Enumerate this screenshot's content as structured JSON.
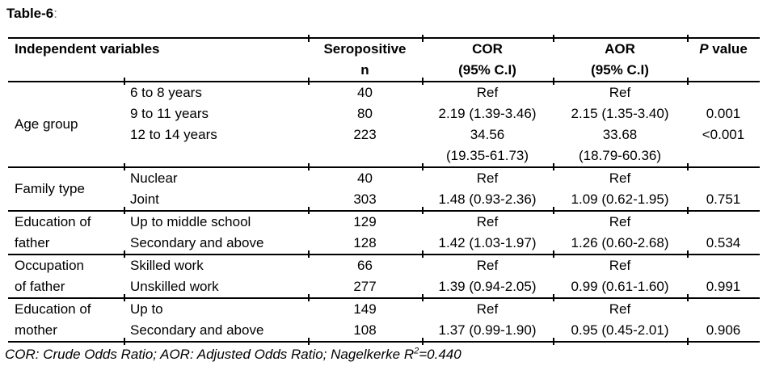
{
  "title": {
    "label": "Table-6",
    "colon": ":"
  },
  "header": {
    "col_variables": "Independent variables",
    "col_n_line1": "Seropositive",
    "col_n_line2": "n",
    "col_cor_line1": "COR",
    "col_cor_line2": "(95% C.I)",
    "col_aor_line1": "AOR",
    "col_aor_line2": "(95% C.I)",
    "col_p_italic": "P",
    "col_p_rest": "value"
  },
  "sections": [
    {
      "group_lines": [
        "Age group"
      ],
      "rows": [
        {
          "category": "6 to 8 years",
          "n": "40",
          "cor": "Ref",
          "aor": "Ref",
          "p": ""
        },
        {
          "category": "9 to 11 years",
          "n": "80",
          "cor": "2.19 (1.39-3.46)",
          "aor": "2.15 (1.35-3.40)",
          "p": "0.001"
        },
        {
          "category": "12 to 14 years",
          "n": "223",
          "cor": "34.56",
          "aor": "33.68",
          "p": "<0.001"
        },
        {
          "category": "",
          "n": "",
          "cor": "(19.35-61.73)",
          "aor": "(18.79-60.36)",
          "p": ""
        }
      ]
    },
    {
      "group_lines": [
        "Family type"
      ],
      "rows": [
        {
          "category": "Nuclear",
          "n": "40",
          "cor": "Ref",
          "aor": "Ref",
          "p": ""
        },
        {
          "category": "Joint",
          "n": "303",
          "cor": "1.48 (0.93-2.36)",
          "aor": "1.09 (0.62-1.95)",
          "p": "0.751"
        }
      ]
    },
    {
      "group_lines": [
        "Education of",
        "father"
      ],
      "rows": [
        {
          "category": "Up to middle school",
          "n": "129",
          "cor": "Ref",
          "aor": "Ref",
          "p": ""
        },
        {
          "category": "Secondary and above",
          "n": "128",
          "cor": "1.42 (1.03-1.97)",
          "aor": "1.26 (0.60-2.68)",
          "p": "0.534"
        }
      ]
    },
    {
      "group_lines": [
        "Occupation",
        "of father"
      ],
      "rows": [
        {
          "category": "Skilled work",
          "n": "66",
          "cor": "Ref",
          "aor": "Ref",
          "p": ""
        },
        {
          "category": "Unskilled work",
          "n": "277",
          "cor": "1.39 (0.94-2.05)",
          "aor": "0.99 (0.61-1.60)",
          "p": "0.991"
        }
      ]
    },
    {
      "group_lines": [
        "Education of",
        "mother"
      ],
      "rows": [
        {
          "category": "Up to",
          "n": "149",
          "cor": "Ref",
          "aor": "Ref",
          "p": ""
        },
        {
          "category": "Secondary and above",
          "n": "108",
          "cor": "1.37 (0.99-1.90)",
          "aor": "0.95 (0.45-2.01)",
          "p": "0.906"
        }
      ]
    }
  ],
  "footnote": {
    "before_sup": "COR: Crude Odds Ratio; AOR: Adjusted Odds Ratio; Nagelkerke R",
    "sup": "2",
    "after_sup": "=0.440"
  }
}
